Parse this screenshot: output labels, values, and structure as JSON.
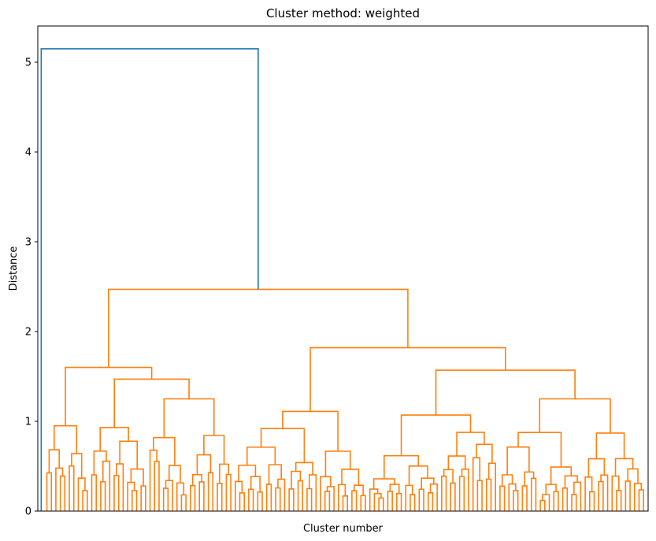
{
  "chart_data": {
    "type": "dendrogram",
    "title": "Cluster method: weighted",
    "xlabel": "Cluster number",
    "ylabel": "Distance",
    "ylim": [
      0,
      5.4
    ],
    "yticks": [
      "0",
      "1",
      "2",
      "3",
      "4",
      "5"
    ],
    "xticks_visible": false,
    "grid": false,
    "colors": {
      "above_threshold": "#1f77b4",
      "cluster": "#ff7f0e"
    },
    "leaf_count": 135,
    "root_height": 5.15,
    "root_left_child": "single leaf at far left (height 0)",
    "cluster_root_height": 2.47,
    "main_merges": [
      {
        "level": "top",
        "height": 2.47,
        "children": [
          "left_group",
          "right_group"
        ]
      },
      {
        "name": "left_group",
        "height": 1.6,
        "children": [
          "A",
          "B"
        ]
      },
      {
        "name": "A",
        "height": 0.95
      },
      {
        "name": "B",
        "height": 1.47,
        "children": [
          "B1",
          "B2"
        ]
      },
      {
        "name": "B1",
        "height": 0.93
      },
      {
        "name": "B2",
        "height": 1.25
      },
      {
        "name": "right_group",
        "height": 1.82,
        "children": [
          "C",
          "D"
        ]
      },
      {
        "name": "C",
        "height": 1.11
      },
      {
        "name": "D",
        "height": 1.57,
        "children": [
          "D1",
          "D2"
        ]
      },
      {
        "name": "D1",
        "height": 1.07
      },
      {
        "name": "D2",
        "height": 1.25
      }
    ]
  }
}
